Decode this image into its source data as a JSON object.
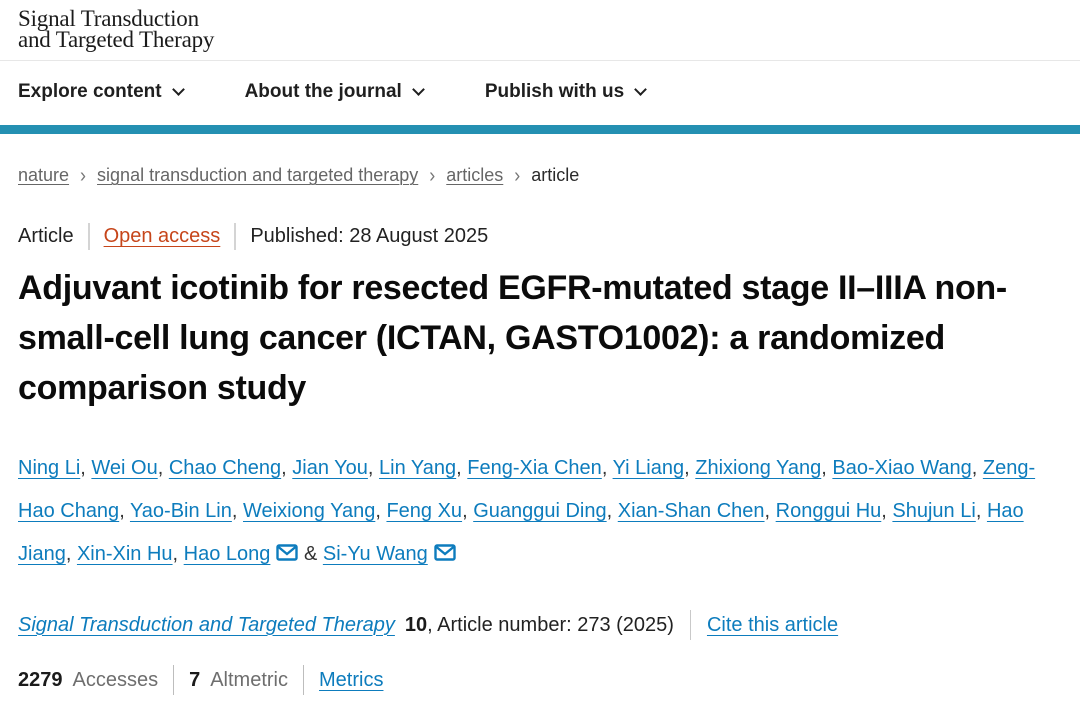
{
  "brand": {
    "logo_line1": "Signal Transduction",
    "logo_line2": "and Targeted Therapy"
  },
  "nav": {
    "items": [
      "Explore content",
      "About the journal",
      "Publish with us"
    ]
  },
  "breadcrumb": {
    "items": [
      "nature",
      "signal transduction and targeted therapy",
      "articles",
      "article"
    ]
  },
  "meta": {
    "type": "Article",
    "access_label": "Open access",
    "published": "Published: 28 August 2025"
  },
  "title": "Adjuvant icotinib for resected EGFR-mutated stage II–IIIA non-small-cell lung cancer (ICTAN, GASTO1002): a randomized comparison study",
  "authors": {
    "list": [
      {
        "name": "Ning Li"
      },
      {
        "name": "Wei Ou"
      },
      {
        "name": "Chao Cheng"
      },
      {
        "name": "Jian You"
      },
      {
        "name": "Lin Yang"
      },
      {
        "name": "Feng-Xia Chen"
      },
      {
        "name": "Yi Liang"
      },
      {
        "name": "Zhixiong Yang"
      },
      {
        "name": "Bao-Xiao Wang"
      },
      {
        "name": "Zeng-Hao Chang"
      },
      {
        "name": "Yao-Bin Lin"
      },
      {
        "name": "Weixiong Yang"
      },
      {
        "name": "Feng Xu"
      },
      {
        "name": "Guanggui Ding"
      },
      {
        "name": "Xian-Shan Chen"
      },
      {
        "name": "Ronggui Hu"
      },
      {
        "name": "Shujun Li"
      },
      {
        "name": "Hao Jiang"
      },
      {
        "name": "Xin-Xin Hu"
      },
      {
        "name": "Hao Long",
        "email": true
      },
      {
        "name": "Si-Yu Wang",
        "email": true
      }
    ]
  },
  "citation": {
    "journal": "Signal Transduction and Targeted Therapy",
    "volume": "10",
    "rest": ", Article number: 273 (2025)",
    "cite_label": "Cite this article"
  },
  "metrics": {
    "accesses_value": "2279",
    "accesses_label": "Accesses",
    "altmetric_value": "7",
    "altmetric_label": "Altmetric",
    "metrics_label": "Metrics"
  },
  "colors": {
    "link_blue": "#0d7cbd",
    "teal_bar": "#2490b2",
    "open_access": "#c6451a"
  }
}
